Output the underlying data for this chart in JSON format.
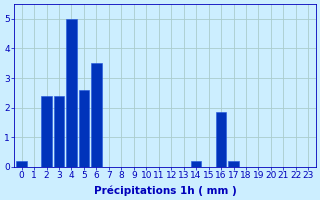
{
  "categories": [
    0,
    1,
    2,
    3,
    4,
    5,
    6,
    7,
    8,
    9,
    10,
    11,
    12,
    13,
    14,
    15,
    16,
    17,
    18,
    19,
    20,
    21,
    22,
    23
  ],
  "values": [
    0.2,
    0,
    2.4,
    2.4,
    5.0,
    2.6,
    3.5,
    0,
    0,
    0,
    0,
    0,
    0,
    0,
    0.2,
    0,
    1.85,
    0.2,
    0,
    0,
    0,
    0,
    0,
    0
  ],
  "bar_color": "#0033bb",
  "bar_edge_color": "#2255dd",
  "background_color": "#cceeff",
  "grid_color": "#aacccc",
  "xlabel": "Précipitations 1h ( mm )",
  "xlabel_color": "#0000bb",
  "tick_color": "#0000bb",
  "ylim": [
    0,
    5.5
  ],
  "xlim": [
    -0.6,
    23.6
  ],
  "yticks": [
    0,
    1,
    2,
    3,
    4,
    5
  ],
  "xlabel_fontsize": 7.5,
  "tick_fontsize": 6.5
}
